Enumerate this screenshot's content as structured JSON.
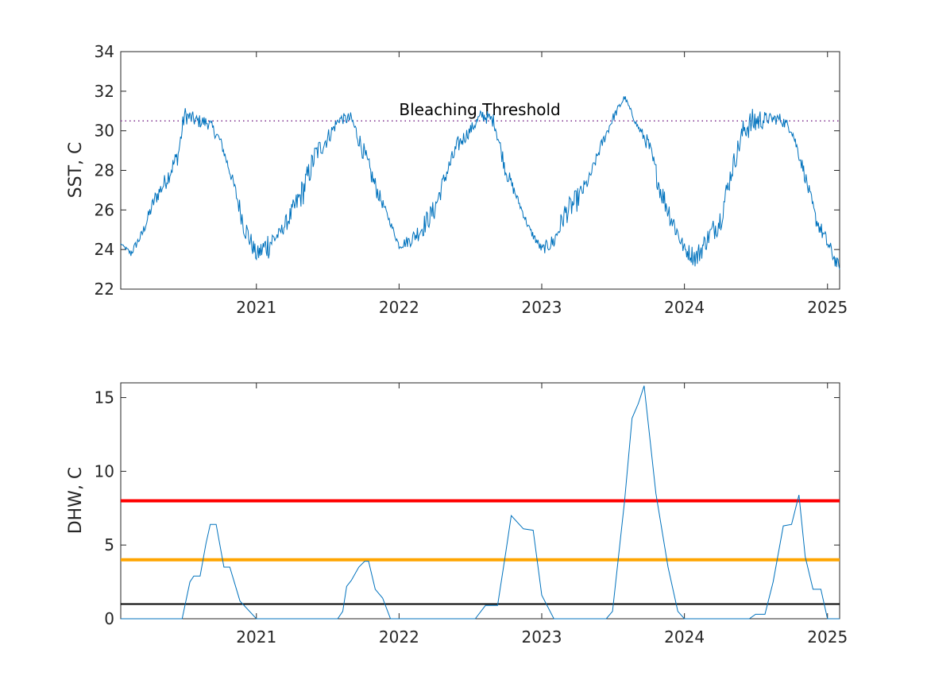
{
  "chart_data": [
    {
      "type": "line",
      "ylabel": "SST, C",
      "xlim": [
        "2020-01-20",
        "2025-02-01"
      ],
      "ylim": [
        22,
        34
      ],
      "yticks": [
        22,
        24,
        26,
        28,
        30,
        32,
        34
      ],
      "xtick_labels": [
        "2021",
        "2022",
        "2023",
        "2024",
        "2025"
      ],
      "grid": false,
      "series": [
        {
          "color": "#0072BD",
          "x": [
            "2020-01-20",
            "2020-02-15",
            "2020-03-15",
            "2020-04-15",
            "2020-05-15",
            "2020-06-15",
            "2020-07-01",
            "2020-08-01",
            "2020-09-01",
            "2020-10-01",
            "2020-11-01",
            "2020-12-01",
            "2021-01-01",
            "2021-02-01",
            "2021-03-01",
            "2021-04-01",
            "2021-05-01",
            "2021-06-01",
            "2021-07-01",
            "2021-08-01",
            "2021-09-01",
            "2021-10-01",
            "2021-11-01",
            "2021-12-01",
            "2022-01-01",
            "2022-02-01",
            "2022-03-01",
            "2022-04-01",
            "2022-05-01",
            "2022-06-01",
            "2022-07-01",
            "2022-08-01",
            "2022-09-01",
            "2022-10-01",
            "2022-11-01",
            "2022-12-01",
            "2023-01-01",
            "2023-02-01",
            "2023-03-01",
            "2023-04-01",
            "2023-05-01",
            "2023-06-01",
            "2023-07-01",
            "2023-08-01",
            "2023-09-01",
            "2023-10-01",
            "2023-11-01",
            "2023-12-01",
            "2024-01-01",
            "2024-02-01",
            "2024-03-01",
            "2024-04-01",
            "2024-05-01",
            "2024-06-01",
            "2024-07-01",
            "2024-08-01",
            "2024-09-01",
            "2024-10-01",
            "2024-11-01",
            "2024-12-01",
            "2025-01-01",
            "2025-02-01"
          ],
          "y": [
            24.3,
            23.8,
            24.8,
            26.5,
            27.5,
            28.8,
            30.8,
            30.5,
            30.4,
            29.5,
            27.5,
            25.2,
            23.7,
            24.3,
            24.8,
            25.8,
            27.0,
            28.8,
            29.6,
            30.6,
            30.6,
            29.0,
            27.2,
            25.8,
            24.2,
            24.5,
            25.1,
            26.0,
            27.8,
            29.3,
            30.0,
            30.8,
            30.5,
            28.0,
            26.5,
            25.0,
            24.0,
            24.4,
            25.8,
            26.5,
            27.5,
            29.2,
            30.6,
            31.7,
            30.3,
            29.3,
            27.0,
            25.5,
            24.0,
            23.6,
            24.6,
            25.5,
            28.0,
            30.1,
            30.5,
            30.6,
            30.6,
            30.1,
            28.0,
            25.6,
            24.3,
            23.0
          ],
          "noise": [
            0,
            0.4,
            0.5,
            0.8,
            0.9,
            1.0,
            0.9,
            0.7,
            0.7,
            0.5,
            0.6,
            1.3,
            0.8,
            1.6,
            0.6,
            1.1,
            1.5,
            1.2,
            0.9,
            0.5,
            0.7,
            1.0,
            1.0,
            0.3,
            0.4,
            0.7,
            1.1,
            1.1,
            0.9,
            0.9,
            0.6,
            0.7,
            0.7,
            0.9,
            0.4,
            0.4,
            0.5,
            0.9,
            1.2,
            1.2,
            0.6,
            0.6,
            0.5,
            0.3,
            0.3,
            0.9,
            1.2,
            1.3,
            0.7,
            1.2,
            1.0,
            1.4,
            1.1,
            1.2,
            1.6,
            0.6,
            0.6,
            0.6,
            0.7,
            0.8,
            0.8,
            0.7
          ]
        }
      ],
      "annotations": [
        {
          "text": "Bleaching Threshold",
          "y": 30.5,
          "style": "dotted",
          "color": "#7E2F8E"
        }
      ]
    },
    {
      "type": "line",
      "ylabel": "DHW, C",
      "xlim": [
        "2020-01-20",
        "2025-02-01"
      ],
      "ylim": [
        0,
        16
      ],
      "yticks": [
        0,
        5,
        10,
        15
      ],
      "xtick_labels": [
        "2021",
        "2022",
        "2023",
        "2024",
        "2025"
      ],
      "grid": false,
      "series": [
        {
          "color": "#0072BD",
          "x": [
            "2020-01-20",
            "2020-06-25",
            "2020-07-15",
            "2020-07-25",
            "2020-08-10",
            "2020-08-25",
            "2020-09-05",
            "2020-09-20",
            "2020-10-10",
            "2020-10-25",
            "2020-11-20",
            "2021-01-01",
            "2021-02-01",
            "2021-07-28",
            "2021-08-10",
            "2021-08-20",
            "2021-09-01",
            "2021-09-20",
            "2021-10-05",
            "2021-10-15",
            "2021-11-01",
            "2021-11-20",
            "2021-12-10",
            "2022-01-01",
            "2022-02-01",
            "2022-07-15",
            "2022-08-10",
            "2022-09-10",
            "2022-10-01",
            "2022-10-15",
            "2022-11-15",
            "2022-12-10",
            "2022-12-25",
            "2023-01-01",
            "2023-02-01",
            "2023-05-01",
            "2023-06-15",
            "2023-07-01",
            "2023-08-01",
            "2023-08-20",
            "2023-09-05",
            "2023-09-20",
            "2023-10-20",
            "2023-11-20",
            "2023-12-15",
            "2024-01-01",
            "2024-02-01",
            "2024-05-15",
            "2024-06-15",
            "2024-07-01",
            "2024-07-25",
            "2024-08-15",
            "2024-09-10",
            "2024-10-01",
            "2024-10-20",
            "2024-11-05",
            "2024-11-25",
            "2024-12-15",
            "2025-01-01",
            "2025-02-01"
          ],
          "y": [
            0,
            0,
            2.5,
            2.9,
            2.9,
            5.1,
            6.4,
            6.4,
            3.5,
            3.5,
            1.2,
            0,
            0,
            0,
            0.5,
            2.2,
            2.6,
            3.5,
            3.9,
            3.9,
            2.0,
            1.4,
            0,
            0,
            0,
            0,
            0.9,
            0.9,
            4.5,
            7.0,
            6.1,
            6.0,
            3.0,
            1.6,
            0,
            0,
            0,
            0.5,
            8.0,
            13.6,
            14.6,
            15.8,
            8.5,
            3.5,
            0.5,
            0,
            0,
            0,
            0,
            0.3,
            0.3,
            2.5,
            6.3,
            6.4,
            8.4,
            4.2,
            2.0,
            2.0,
            0,
            0
          ]
        }
      ],
      "reference_lines": [
        {
          "y": 8,
          "color": "#FF0000"
        },
        {
          "y": 4,
          "color": "#FFA500"
        },
        {
          "y": 1,
          "color": "#000000"
        }
      ]
    }
  ]
}
